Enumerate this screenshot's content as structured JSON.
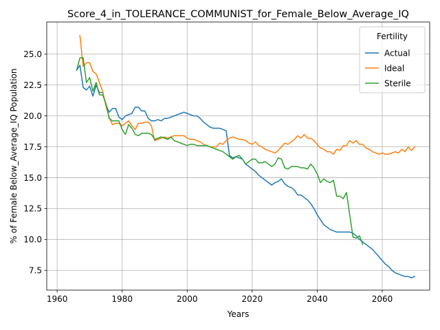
{
  "chart_data": {
    "type": "line",
    "title": "Score_4_in_TOLERANCE_COMMUNIST_for_Female_Below_Average_IQ",
    "xlabel": "Years",
    "ylabel": "% of Female Below_Average_IQ Population",
    "xlim": [
      1956.8,
      2074.6
    ],
    "ylim": [
      5.9,
      27.6
    ],
    "xticks": [
      1960,
      1980,
      2000,
      2020,
      2040,
      2060
    ],
    "yticks": [
      7.5,
      10.0,
      12.5,
      15.0,
      17.5,
      20.0,
      22.5,
      25.0
    ],
    "grid": true,
    "legend": {
      "title": "Fertility",
      "placement": "upper right"
    },
    "series": [
      {
        "name": "Actual",
        "color": "#1f77b4",
        "x": [
          1966,
          1967,
          1968,
          1969,
          1970,
          1971,
          1972,
          1973,
          1974,
          1975,
          1976,
          1977,
          1978,
          1979,
          1980,
          1981,
          1982,
          1983,
          1984,
          1985,
          1986,
          1987,
          1988,
          1989,
          1990,
          1991,
          1992,
          1993,
          1994,
          1995,
          1996,
          1997,
          1998,
          1999,
          2000,
          2001,
          2002,
          2003,
          2004,
          2005,
          2006,
          2007,
          2008,
          2009,
          2010,
          2011,
          2012,
          2013,
          2014,
          2015,
          2016,
          2017,
          2018,
          2019,
          2020,
          2021,
          2022,
          2023,
          2024,
          2025,
          2026,
          2027,
          2028,
          2029,
          2030,
          2031,
          2032,
          2033,
          2034,
          2035,
          2036,
          2037,
          2038,
          2039,
          2040,
          2041,
          2042,
          2043,
          2044,
          2045,
          2046,
          2047,
          2048,
          2049,
          2050,
          2051,
          2052,
          2053,
          2054,
          2055,
          2056,
          2057,
          2058,
          2059,
          2060,
          2061,
          2062,
          2063,
          2064,
          2065,
          2066,
          2067,
          2068,
          2069,
          2070
        ],
        "y": [
          23.7,
          24.1,
          22.3,
          22.1,
          22.4,
          21.6,
          22.5,
          21.9,
          21.9,
          20.9,
          20.3,
          20.6,
          20.6,
          19.9,
          19.7,
          20.0,
          20.1,
          20.2,
          20.7,
          20.7,
          20.4,
          20.4,
          19.8,
          19.6,
          19.6,
          19.7,
          19.6,
          19.8,
          19.8,
          19.9,
          20.0,
          20.1,
          20.2,
          20.3,
          20.2,
          20.1,
          20.0,
          20.0,
          19.8,
          19.5,
          19.3,
          19.1,
          19.0,
          19.0,
          19.0,
          18.9,
          18.8,
          16.8,
          16.6,
          16.7,
          16.6,
          16.5,
          16.1,
          15.9,
          15.7,
          15.5,
          15.2,
          15.0,
          14.8,
          14.6,
          14.4,
          14.6,
          14.7,
          14.9,
          14.5,
          14.3,
          14.2,
          14.0,
          13.6,
          13.6,
          13.4,
          13.2,
          12.9,
          12.5,
          12.0,
          11.6,
          11.2,
          11.0,
          10.8,
          10.7,
          10.6,
          10.6,
          10.6,
          10.6,
          10.6,
          10.5,
          10.3,
          10.0,
          9.8,
          9.6,
          9.4,
          9.2,
          8.9,
          8.6,
          8.3,
          8.0,
          7.8,
          7.5,
          7.3,
          7.2,
          7.1,
          7.0,
          7.0,
          6.9,
          7.0
        ]
      },
      {
        "name": "Ideal",
        "color": "#ff7f0e",
        "x": [
          1967,
          1968,
          1969,
          1970,
          1971,
          1972,
          1973,
          1974,
          1975,
          1976,
          1977,
          1978,
          1979,
          1980,
          1981,
          1982,
          1983,
          1984,
          1985,
          1986,
          1987,
          1988,
          1989,
          1990,
          1991,
          1992,
          1993,
          1994,
          1995,
          1996,
          1997,
          1998,
          1999,
          2000,
          2001,
          2002,
          2003,
          2004,
          2005,
          2006,
          2007,
          2008,
          2009,
          2010,
          2011,
          2012,
          2013,
          2014,
          2015,
          2016,
          2017,
          2018,
          2019,
          2020,
          2021,
          2022,
          2023,
          2024,
          2025,
          2026,
          2027,
          2028,
          2029,
          2030,
          2031,
          2032,
          2033,
          2034,
          2035,
          2036,
          2037,
          2038,
          2039,
          2040,
          2041,
          2042,
          2043,
          2044,
          2045,
          2046,
          2047,
          2048,
          2049,
          2050,
          2051,
          2052,
          2053,
          2054,
          2055,
          2056,
          2057,
          2058,
          2059,
          2060,
          2061,
          2062,
          2063,
          2064,
          2065,
          2066,
          2067,
          2068,
          2069,
          2070
        ],
        "y": [
          26.5,
          24.0,
          24.3,
          24.3,
          23.6,
          23.4,
          22.7,
          22.0,
          20.8,
          19.9,
          19.3,
          19.4,
          19.4,
          19.2,
          19.4,
          19.6,
          19.2,
          18.9,
          19.4,
          19.4,
          19.5,
          19.5,
          19.2,
          18.0,
          18.1,
          18.2,
          18.3,
          18.2,
          18.3,
          18.4,
          18.4,
          18.4,
          18.4,
          18.2,
          18.1,
          18.1,
          18.0,
          17.9,
          17.7,
          17.6,
          17.5,
          17.5,
          17.5,
          17.8,
          17.7,
          18.0,
          18.2,
          18.3,
          18.2,
          18.1,
          18.1,
          18.0,
          17.8,
          17.7,
          17.9,
          17.6,
          17.5,
          17.3,
          17.2,
          17.1,
          17.0,
          17.2,
          17.5,
          17.8,
          17.7,
          17.9,
          18.1,
          18.4,
          18.2,
          18.5,
          18.2,
          18.2,
          18.0,
          17.7,
          17.4,
          17.3,
          17.1,
          17.1,
          16.9,
          17.3,
          17.2,
          17.6,
          17.6,
          18.0,
          17.8,
          18.0,
          17.7,
          17.7,
          17.4,
          17.3,
          17.1,
          17.0,
          16.9,
          17.0,
          16.9,
          16.9,
          17.0,
          17.1,
          17.0,
          17.3,
          17.1,
          17.5,
          17.2,
          17.5
        ]
      },
      {
        "name": "Sterile",
        "color": "#2ca02c",
        "x": [
          1966,
          1967,
          1968,
          1969,
          1970,
          1971,
          1972,
          1973,
          1974,
          1975,
          1976,
          1977,
          1978,
          1979,
          1980,
          1981,
          1982,
          1983,
          1984,
          1985,
          1986,
          1987,
          1988,
          1989,
          1990,
          1991,
          1992,
          1993,
          1994,
          1995,
          1996,
          1997,
          1998,
          1999,
          2000,
          2001,
          2002,
          2003,
          2004,
          2005,
          2006,
          2007,
          2008,
          2009,
          2010,
          2011,
          2012,
          2013,
          2014,
          2015,
          2016,
          2017,
          2018,
          2019,
          2020,
          2021,
          2022,
          2023,
          2024,
          2025,
          2026,
          2027,
          2028,
          2029,
          2030,
          2031,
          2032,
          2033,
          2034,
          2035,
          2036,
          2037,
          2038,
          2039,
          2040,
          2041,
          2042,
          2043,
          2044,
          2045,
          2046,
          2047,
          2048,
          2049,
          2050,
          2051,
          2052,
          2053,
          2054
        ],
        "y": [
          23.7,
          24.7,
          24.7,
          22.7,
          23.1,
          22.0,
          22.7,
          21.7,
          21.7,
          21.0,
          19.8,
          19.6,
          19.6,
          19.6,
          18.9,
          18.5,
          19.3,
          19.0,
          18.5,
          18.4,
          18.6,
          18.6,
          18.6,
          18.5,
          18.1,
          18.2,
          18.3,
          18.2,
          18.1,
          18.3,
          18.0,
          17.9,
          17.8,
          17.7,
          17.6,
          17.7,
          17.7,
          17.6,
          17.6,
          17.6,
          17.6,
          17.5,
          17.4,
          17.3,
          17.2,
          17.1,
          16.9,
          16.7,
          16.5,
          16.7,
          16.8,
          16.5,
          16.1,
          16.3,
          16.5,
          16.5,
          16.2,
          16.2,
          16.3,
          16.1,
          15.9,
          16.1,
          16.6,
          16.5,
          15.8,
          15.7,
          15.9,
          15.9,
          15.9,
          15.8,
          15.8,
          15.7,
          16.1,
          15.8,
          15.3,
          14.6,
          14.9,
          14.7,
          14.6,
          14.8,
          13.5,
          13.5,
          13.3,
          13.8,
          12.0,
          10.2,
          10.1,
          10.3,
          9.6
        ]
      }
    ]
  }
}
